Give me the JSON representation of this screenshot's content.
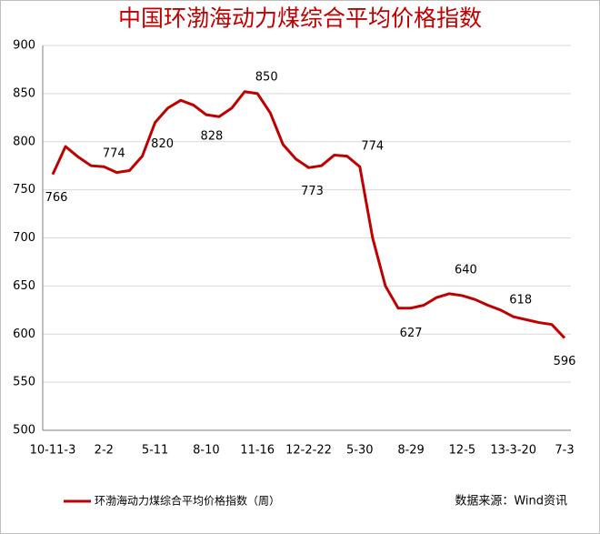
{
  "chart_data": {
    "type": "line",
    "title": "中国环渤海动力煤综合平均价格指数",
    "categories": [
      "10-11-3",
      null,
      null,
      null,
      "2-2",
      null,
      null,
      null,
      "5-11",
      null,
      null,
      null,
      "8-10",
      null,
      null,
      null,
      "11-16",
      null,
      null,
      null,
      "12-2-22",
      null,
      null,
      null,
      "5-30",
      null,
      null,
      null,
      "8-29",
      null,
      null,
      null,
      "12-5",
      null,
      null,
      null,
      "13-3-20",
      null,
      null,
      null,
      "7-3"
    ],
    "series": [
      {
        "name": "环渤海动力煤综合平均价格指数（周）",
        "color": "#c00000",
        "values": [
          766,
          795,
          784,
          775,
          774,
          768,
          770,
          785,
          820,
          835,
          843,
          838,
          828,
          826,
          835,
          852,
          850,
          830,
          797,
          782,
          773,
          775,
          786,
          785,
          774,
          700,
          650,
          627,
          627,
          630,
          638,
          642,
          640,
          636,
          630,
          625,
          618,
          615,
          612,
          610,
          596
        ]
      }
    ],
    "label_indices": [
      0,
      4,
      8,
      12,
      16,
      20,
      24,
      28,
      32,
      36,
      40
    ],
    "ylim": [
      500,
      900
    ],
    "yticks": [
      500,
      550,
      600,
      650,
      700,
      750,
      800,
      850,
      900
    ],
    "grid": true,
    "legend": "bottom-left",
    "source": "数据来源：Wind资讯"
  }
}
